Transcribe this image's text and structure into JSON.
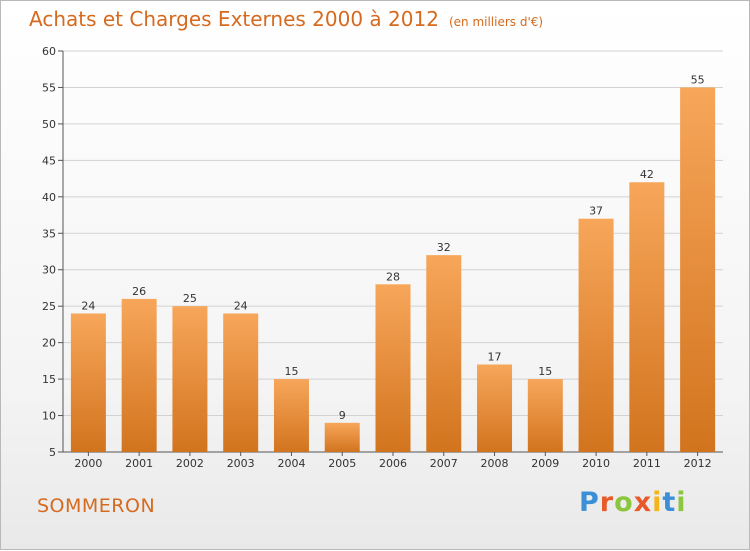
{
  "chart_data": {
    "type": "bar",
    "title": "Achats et Charges Externes 2000 à 2012",
    "unit_note": "(en milliers d'€)",
    "categories": [
      "2000",
      "2001",
      "2002",
      "2003",
      "2004",
      "2005",
      "2006",
      "2007",
      "2008",
      "2009",
      "2010",
      "2011",
      "2012"
    ],
    "values": [
      24,
      26,
      25,
      24,
      15,
      9,
      28,
      32,
      17,
      15,
      37,
      42,
      55
    ],
    "ylim": [
      5,
      60
    ],
    "yticks": [
      5,
      10,
      15,
      20,
      25,
      30,
      35,
      40,
      45,
      50,
      55,
      60
    ],
    "grid": true,
    "bar_color_top": "#f7a65a",
    "bar_color_bottom": "#d2741e"
  },
  "commune": "SOMMERON",
  "logo": {
    "letters": [
      "P",
      "r",
      "o",
      "x",
      "i",
      "t",
      "i"
    ],
    "colors": [
      "#3a8fd6",
      "#e85a2a",
      "#8cc63f",
      "#e85a2a",
      "#f5b41a",
      "#3a8fd6",
      "#8cc63f"
    ]
  }
}
